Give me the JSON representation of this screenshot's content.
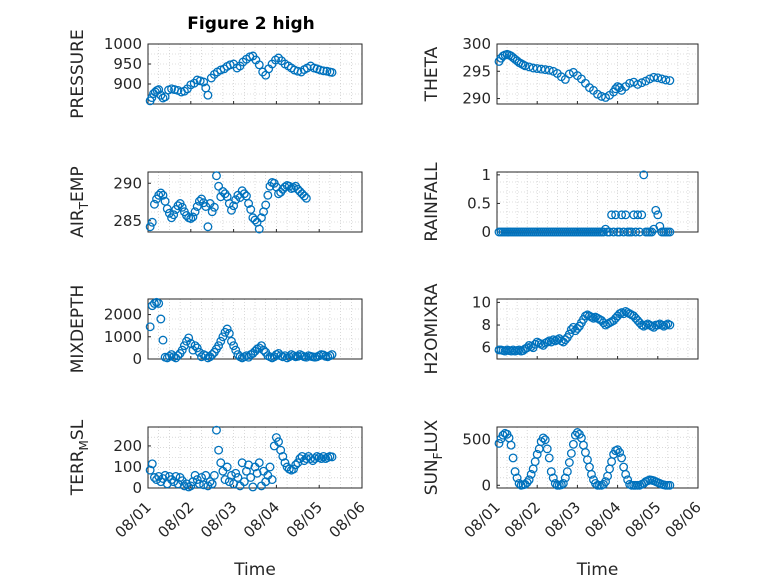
{
  "figure": {
    "title": "Figure 2 high",
    "marker_color": "#0072BD",
    "axis_color": "#262626",
    "grid_color": "#c0c0c0",
    "grid": true,
    "marker": "open-circle"
  },
  "chart_data": [
    {
      "type": "scatter",
      "title": "Figure 2 high",
      "ylabel": "PRESSURE",
      "xlabel": "",
      "xlim": [
        0,
        5
      ],
      "ylim": [
        850,
        1000
      ],
      "yticks": [
        900,
        950,
        1000
      ],
      "yticklabels": [
        "900",
        "950",
        "1000"
      ],
      "x": [
        0.05,
        0.09,
        0.13,
        0.17,
        0.21,
        0.25,
        0.3,
        0.35,
        0.4,
        0.48,
        0.55,
        0.62,
        0.7,
        0.78,
        0.85,
        0.92,
        1.0,
        1.08,
        1.15,
        1.22,
        1.3,
        1.35,
        1.4,
        1.48,
        1.55,
        1.62,
        1.7,
        1.78,
        1.85,
        1.92,
        2.0,
        2.08,
        2.15,
        2.22,
        2.3,
        2.38,
        2.45,
        2.52,
        2.6,
        2.68,
        2.75,
        2.82,
        2.9,
        2.98,
        3.05,
        3.12,
        3.2,
        3.28,
        3.35,
        3.42,
        3.5,
        3.58,
        3.65,
        3.72,
        3.8,
        3.88,
        3.95,
        4.02,
        4.1,
        4.18,
        4.25,
        4.3
      ],
      "y": [
        858,
        866,
        876,
        880,
        884,
        886,
        872,
        865,
        868,
        885,
        888,
        886,
        884,
        880,
        882,
        888,
        898,
        902,
        910,
        908,
        905,
        890,
        872,
        915,
        924,
        930,
        935,
        938,
        944,
        948,
        950,
        940,
        945,
        955,
        962,
        968,
        970,
        960,
        948,
        930,
        922,
        938,
        950,
        960,
        965,
        958,
        950,
        945,
        940,
        935,
        932,
        930,
        936,
        940,
        945,
        940,
        938,
        935,
        933,
        932,
        930,
        929
      ],
      "series": [
        {
          "name": ""
        }
      ]
    },
    {
      "type": "scatter",
      "ylabel": "THETA",
      "xlabel": "",
      "xlim": [
        0,
        5
      ],
      "ylim": [
        289,
        300
      ],
      "yticks": [
        290,
        295,
        300
      ],
      "yticklabels": [
        "290",
        "295",
        "300"
      ],
      "x": [
        0.05,
        0.1,
        0.15,
        0.2,
        0.25,
        0.3,
        0.35,
        0.4,
        0.45,
        0.5,
        0.55,
        0.6,
        0.65,
        0.7,
        0.8,
        0.9,
        1.0,
        1.1,
        1.2,
        1.3,
        1.4,
        1.5,
        1.6,
        1.7,
        1.8,
        1.9,
        2.0,
        2.1,
        2.2,
        2.3,
        2.4,
        2.5,
        2.6,
        2.7,
        2.8,
        2.9,
        2.95,
        3.0,
        3.05,
        3.1,
        3.2,
        3.3,
        3.4,
        3.5,
        3.6,
        3.7,
        3.8,
        3.9,
        4.0,
        4.1,
        4.2,
        4.3
      ],
      "y": [
        296.8,
        297.4,
        297.8,
        298.0,
        298.1,
        298.0,
        297.8,
        297.5,
        297.2,
        296.9,
        296.6,
        296.4,
        296.2,
        296.0,
        295.8,
        295.6,
        295.5,
        295.4,
        295.3,
        295.2,
        295.0,
        294.6,
        294.0,
        293.5,
        294.5,
        294.8,
        294.2,
        293.6,
        292.8,
        292.0,
        291.5,
        290.8,
        290.4,
        290.2,
        290.6,
        291.2,
        291.8,
        292.2,
        292.0,
        291.5,
        292.2,
        292.8,
        293.0,
        292.6,
        292.9,
        293.2,
        293.6,
        293.9,
        293.8,
        293.6,
        293.4,
        293.3
      ]
    },
    {
      "type": "scatter",
      "ylabel": "AIR_TEMP",
      "xlabel": "",
      "xlim": [
        0,
        5
      ],
      "ylim": [
        283.5,
        291.5
      ],
      "yticks": [
        285,
        290
      ],
      "yticklabels": [
        "285",
        "290"
      ],
      "x": [
        0.05,
        0.1,
        0.15,
        0.2,
        0.25,
        0.3,
        0.35,
        0.4,
        0.45,
        0.5,
        0.55,
        0.6,
        0.65,
        0.7,
        0.75,
        0.8,
        0.85,
        0.9,
        0.95,
        1.0,
        1.05,
        1.1,
        1.15,
        1.2,
        1.25,
        1.3,
        1.35,
        1.4,
        1.45,
        1.5,
        1.55,
        1.6,
        1.65,
        1.7,
        1.75,
        1.8,
        1.85,
        1.9,
        1.95,
        2.0,
        2.05,
        2.1,
        2.15,
        2.2,
        2.25,
        2.3,
        2.35,
        2.4,
        2.45,
        2.5,
        2.55,
        2.6,
        2.65,
        2.7,
        2.75,
        2.8,
        2.85,
        2.9,
        2.95,
        3.0,
        3.05,
        3.1,
        3.15,
        3.2,
        3.25,
        3.3,
        3.35,
        3.4,
        3.45,
        3.5,
        3.55,
        3.6,
        3.65,
        3.7
      ],
      "y": [
        284.2,
        284.8,
        287.2,
        287.9,
        288.4,
        288.7,
        288.4,
        287.6,
        286.6,
        286.0,
        285.4,
        285.8,
        286.5,
        287.0,
        287.3,
        286.8,
        286.2,
        285.7,
        285.4,
        285.3,
        285.5,
        286.2,
        286.9,
        287.6,
        287.9,
        287.4,
        286.9,
        284.2,
        287.3,
        286.2,
        286.8,
        291.0,
        289.6,
        288.2,
        288.9,
        288.6,
        288.2,
        287.3,
        286.4,
        287.0,
        287.8,
        288.4,
        288.1,
        289.0,
        288.6,
        288.3,
        287.3,
        286.5,
        285.4,
        285.1,
        284.8,
        283.9,
        285.4,
        286.2,
        287.1,
        288.4,
        289.6,
        290.1,
        290.0,
        289.5,
        288.6,
        288.8,
        289.2,
        289.5,
        289.7,
        289.6,
        289.3,
        289.4,
        289.6,
        289.2,
        288.9,
        288.6,
        288.3,
        288.0
      ]
    },
    {
      "type": "scatter",
      "ylabel": "RAINFALL",
      "xlabel": "",
      "xlim": [
        0,
        5
      ],
      "ylim": [
        0,
        1.05
      ],
      "yticks": [
        0,
        0.5,
        1
      ],
      "yticklabels": [
        "0",
        "0.5",
        "1"
      ],
      "x": [
        0.05,
        0.1,
        0.15,
        0.2,
        0.25,
        0.3,
        0.35,
        0.4,
        0.45,
        0.5,
        0.55,
        0.6,
        0.65,
        0.7,
        0.75,
        0.8,
        0.85,
        0.9,
        0.95,
        1.0,
        1.05,
        1.1,
        1.15,
        1.2,
        1.25,
        1.3,
        1.35,
        1.4,
        1.45,
        1.5,
        1.55,
        1.6,
        1.65,
        1.7,
        1.75,
        1.8,
        1.85,
        1.9,
        1.95,
        2.0,
        2.05,
        2.1,
        2.15,
        2.2,
        2.25,
        2.3,
        2.35,
        2.4,
        2.45,
        2.5,
        2.55,
        2.6,
        2.65,
        2.7,
        2.75,
        2.8,
        2.85,
        2.9,
        2.95,
        3.0,
        3.05,
        3.1,
        3.15,
        3.2,
        3.25,
        3.3,
        3.35,
        3.4,
        3.45,
        3.5,
        3.55,
        3.6,
        3.65,
        3.7,
        3.75,
        3.8,
        3.85,
        3.9,
        3.95,
        4.0,
        4.05,
        4.1,
        4.15,
        4.2,
        4.25,
        4.3
      ],
      "y": [
        0,
        0,
        0,
        0,
        0,
        0,
        0,
        0,
        0,
        0,
        0,
        0,
        0,
        0,
        0,
        0,
        0,
        0,
        0,
        0,
        0,
        0,
        0,
        0,
        0,
        0,
        0,
        0,
        0,
        0,
        0,
        0,
        0,
        0,
        0,
        0,
        0,
        0,
        0,
        0,
        0,
        0,
        0,
        0,
        0,
        0,
        0,
        0,
        0,
        0,
        0,
        0,
        0,
        0.05,
        0,
        0,
        0.3,
        0,
        0.3,
        0,
        0,
        0.3,
        0,
        0.3,
        0,
        0,
        0,
        0.3,
        0,
        0.3,
        0,
        0.3,
        1.0,
        0,
        0,
        0,
        0,
        0.05,
        0.38,
        0.3,
        0.1,
        0,
        0,
        0,
        0,
        0
      ]
    },
    {
      "type": "scatter",
      "ylabel": "MIXDEPTH",
      "xlabel": "",
      "xlim": [
        0,
        5
      ],
      "ylim": [
        0,
        2700
      ],
      "yticks": [
        0,
        1000,
        2000
      ],
      "yticklabels": [
        "0",
        "1000",
        "2000"
      ],
      "x": [
        0.05,
        0.1,
        0.15,
        0.2,
        0.25,
        0.3,
        0.35,
        0.4,
        0.45,
        0.5,
        0.55,
        0.6,
        0.65,
        0.7,
        0.75,
        0.8,
        0.85,
        0.9,
        0.95,
        1.0,
        1.05,
        1.1,
        1.15,
        1.2,
        1.25,
        1.3,
        1.35,
        1.4,
        1.45,
        1.5,
        1.55,
        1.6,
        1.65,
        1.7,
        1.75,
        1.8,
        1.85,
        1.9,
        1.95,
        2.0,
        2.05,
        2.1,
        2.15,
        2.2,
        2.25,
        2.3,
        2.35,
        2.4,
        2.45,
        2.5,
        2.55,
        2.6,
        2.65,
        2.7,
        2.75,
        2.8,
        2.85,
        2.9,
        2.95,
        3.0,
        3.05,
        3.1,
        3.15,
        3.2,
        3.25,
        3.3,
        3.35,
        3.4,
        3.45,
        3.5,
        3.55,
        3.6,
        3.65,
        3.7,
        3.75,
        3.8,
        3.85,
        3.9,
        3.95,
        4.0,
        4.05,
        4.1,
        4.15,
        4.2,
        4.25,
        4.3
      ],
      "y": [
        1450,
        2400,
        2500,
        2550,
        2500,
        1800,
        850,
        80,
        50,
        120,
        200,
        100,
        50,
        150,
        250,
        400,
        600,
        800,
        950,
        700,
        400,
        600,
        500,
        300,
        100,
        200,
        150,
        50,
        100,
        200,
        300,
        450,
        600,
        800,
        1000,
        1200,
        1350,
        1150,
        800,
        600,
        400,
        200,
        100,
        50,
        100,
        150,
        80,
        200,
        250,
        350,
        450,
        500,
        600,
        400,
        300,
        150,
        100,
        50,
        100,
        200,
        250,
        150,
        100,
        150,
        50,
        100,
        200,
        150,
        100,
        120,
        200,
        150,
        100,
        80,
        150,
        120,
        100,
        80,
        100,
        150,
        200,
        180,
        120,
        100,
        150,
        200
      ]
    },
    {
      "type": "scatter",
      "ylabel": "H2OMIXRA",
      "xlabel": "",
      "xlim": [
        0,
        5
      ],
      "ylim": [
        5,
        10.3
      ],
      "yticks": [
        6,
        8,
        10
      ],
      "yticklabels": [
        "6",
        "8",
        "10"
      ],
      "x": [
        0.05,
        0.1,
        0.15,
        0.2,
        0.25,
        0.3,
        0.35,
        0.4,
        0.45,
        0.5,
        0.55,
        0.6,
        0.65,
        0.7,
        0.75,
        0.8,
        0.85,
        0.9,
        0.95,
        1.0,
        1.05,
        1.1,
        1.15,
        1.2,
        1.25,
        1.3,
        1.35,
        1.4,
        1.45,
        1.5,
        1.55,
        1.6,
        1.65,
        1.7,
        1.75,
        1.8,
        1.85,
        1.9,
        1.95,
        2.0,
        2.05,
        2.1,
        2.15,
        2.2,
        2.25,
        2.3,
        2.35,
        2.4,
        2.45,
        2.5,
        2.55,
        2.6,
        2.65,
        2.7,
        2.75,
        2.8,
        2.85,
        2.9,
        2.95,
        3.0,
        3.05,
        3.1,
        3.15,
        3.2,
        3.25,
        3.3,
        3.35,
        3.4,
        3.45,
        3.5,
        3.55,
        3.6,
        3.65,
        3.7,
        3.75,
        3.8,
        3.85,
        3.9,
        3.95,
        4.0,
        4.05,
        4.1,
        4.15,
        4.2,
        4.25,
        4.3
      ],
      "y": [
        5.8,
        5.8,
        5.75,
        5.7,
        5.8,
        5.75,
        5.7,
        5.8,
        5.7,
        5.75,
        5.8,
        5.7,
        5.75,
        5.9,
        6.0,
        6.2,
        6.1,
        6.0,
        6.3,
        6.5,
        6.4,
        6.3,
        6.2,
        6.4,
        6.5,
        6.6,
        6.5,
        6.7,
        6.6,
        6.7,
        6.8,
        6.6,
        6.5,
        6.7,
        6.9,
        7.2,
        7.6,
        7.8,
        7.5,
        7.7,
        7.9,
        8.2,
        8.5,
        8.8,
        8.9,
        8.8,
        8.7,
        8.6,
        8.7,
        8.6,
        8.5,
        8.4,
        8.2,
        8.0,
        8.1,
        8.2,
        8.3,
        8.4,
        8.6,
        8.8,
        9.0,
        9.1,
        9.0,
        9.2,
        9.1,
        9.0,
        8.9,
        8.8,
        8.6,
        8.4,
        8.2,
        8.0,
        7.9,
        8.0,
        8.1,
        8.0,
        7.9,
        7.8,
        8.0,
        8.0,
        8.1,
        8.0,
        7.9,
        8.0,
        8.1,
        8.0
      ]
    },
    {
      "type": "scatter",
      "ylabel": "TERR_MSL",
      "xlabel": "Time",
      "xlim": [
        0,
        5
      ],
      "ylim": [
        0,
        290
      ],
      "yticks": [
        0,
        100,
        200
      ],
      "yticklabels": [
        "0",
        "100",
        "200"
      ],
      "xticks": [
        0,
        1,
        2,
        3,
        4,
        5
      ],
      "xticklabels": [
        "08/01",
        "08/02",
        "08/03",
        "08/04",
        "08/05",
        "08/06"
      ],
      "x": [
        0.05,
        0.1,
        0.15,
        0.2,
        0.25,
        0.3,
        0.35,
        0.4,
        0.45,
        0.5,
        0.55,
        0.6,
        0.65,
        0.7,
        0.75,
        0.8,
        0.85,
        0.9,
        0.95,
        1.0,
        1.05,
        1.1,
        1.15,
        1.2,
        1.25,
        1.3,
        1.35,
        1.4,
        1.45,
        1.5,
        1.55,
        1.6,
        1.65,
        1.7,
        1.75,
        1.8,
        1.85,
        1.9,
        1.95,
        2.0,
        2.05,
        2.1,
        2.15,
        2.2,
        2.25,
        2.3,
        2.35,
        2.4,
        2.45,
        2.5,
        2.55,
        2.6,
        2.65,
        2.7,
        2.75,
        2.8,
        2.85,
        2.9,
        2.95,
        3.0,
        3.05,
        3.1,
        3.15,
        3.2,
        3.25,
        3.3,
        3.35,
        3.4,
        3.45,
        3.5,
        3.55,
        3.6,
        3.65,
        3.7,
        3.75,
        3.8,
        3.85,
        3.9,
        3.95,
        4.0,
        4.05,
        4.1,
        4.15,
        4.2,
        4.25,
        4.3
      ],
      "y": [
        85,
        115,
        50,
        40,
        55,
        30,
        45,
        60,
        20,
        55,
        40,
        30,
        55,
        20,
        50,
        35,
        10,
        20,
        5,
        10,
        30,
        60,
        40,
        20,
        50,
        15,
        60,
        10,
        30,
        20,
        60,
        275,
        180,
        120,
        80,
        40,
        100,
        30,
        60,
        20,
        70,
        50,
        10,
        120,
        30,
        80,
        110,
        50,
        5,
        100,
        70,
        120,
        10,
        80,
        30,
        60,
        100,
        40,
        200,
        240,
        220,
        180,
        150,
        120,
        100,
        90,
        85,
        90,
        110,
        120,
        140,
        150,
        130,
        140,
        150,
        140,
        130,
        140,
        150,
        145,
        140,
        150,
        140,
        145,
        150,
        148
      ]
    },
    {
      "type": "scatter",
      "ylabel": "SUN_FLUX",
      "xlabel": "Time",
      "xlim": [
        0,
        5
      ],
      "ylim": [
        -30,
        640
      ],
      "yticks": [
        0,
        500
      ],
      "yticklabels": [
        "0",
        "500"
      ],
      "xticks": [
        0,
        1,
        2,
        3,
        4,
        5
      ],
      "xticklabels": [
        "08/01",
        "08/02",
        "08/03",
        "08/04",
        "08/05",
        "08/06"
      ],
      "x": [
        0.05,
        0.1,
        0.15,
        0.2,
        0.25,
        0.3,
        0.35,
        0.4,
        0.45,
        0.5,
        0.55,
        0.6,
        0.65,
        0.7,
        0.75,
        0.8,
        0.85,
        0.9,
        0.95,
        1.0,
        1.05,
        1.1,
        1.15,
        1.2,
        1.25,
        1.3,
        1.35,
        1.4,
        1.45,
        1.5,
        1.55,
        1.6,
        1.65,
        1.7,
        1.75,
        1.8,
        1.85,
        1.9,
        1.95,
        2.0,
        2.05,
        2.1,
        2.15,
        2.2,
        2.25,
        2.3,
        2.35,
        2.4,
        2.45,
        2.5,
        2.55,
        2.6,
        2.65,
        2.7,
        2.75,
        2.8,
        2.85,
        2.9,
        2.95,
        3.0,
        3.05,
        3.1,
        3.15,
        3.2,
        3.25,
        3.3,
        3.35,
        3.4,
        3.45,
        3.5,
        3.55,
        3.6,
        3.65,
        3.7,
        3.75,
        3.8,
        3.85,
        3.9,
        3.95,
        4.0,
        4.05,
        4.1,
        4.15,
        4.2,
        4.25,
        4.3
      ],
      "y": [
        460,
        510,
        550,
        570,
        560,
        520,
        440,
        300,
        150,
        80,
        20,
        0,
        5,
        10,
        30,
        60,
        120,
        180,
        260,
        340,
        400,
        480,
        520,
        500,
        400,
        300,
        150,
        80,
        20,
        0,
        0,
        5,
        20,
        80,
        150,
        250,
        350,
        450,
        550,
        580,
        560,
        520,
        440,
        360,
        280,
        200,
        120,
        60,
        20,
        0,
        0,
        0,
        10,
        40,
        100,
        180,
        260,
        340,
        380,
        390,
        360,
        300,
        200,
        120,
        60,
        10,
        0,
        0,
        0,
        0,
        0,
        10,
        20,
        40,
        50,
        60,
        55,
        50,
        40,
        30,
        20,
        10,
        5,
        0,
        0,
        0
      ]
    }
  ]
}
